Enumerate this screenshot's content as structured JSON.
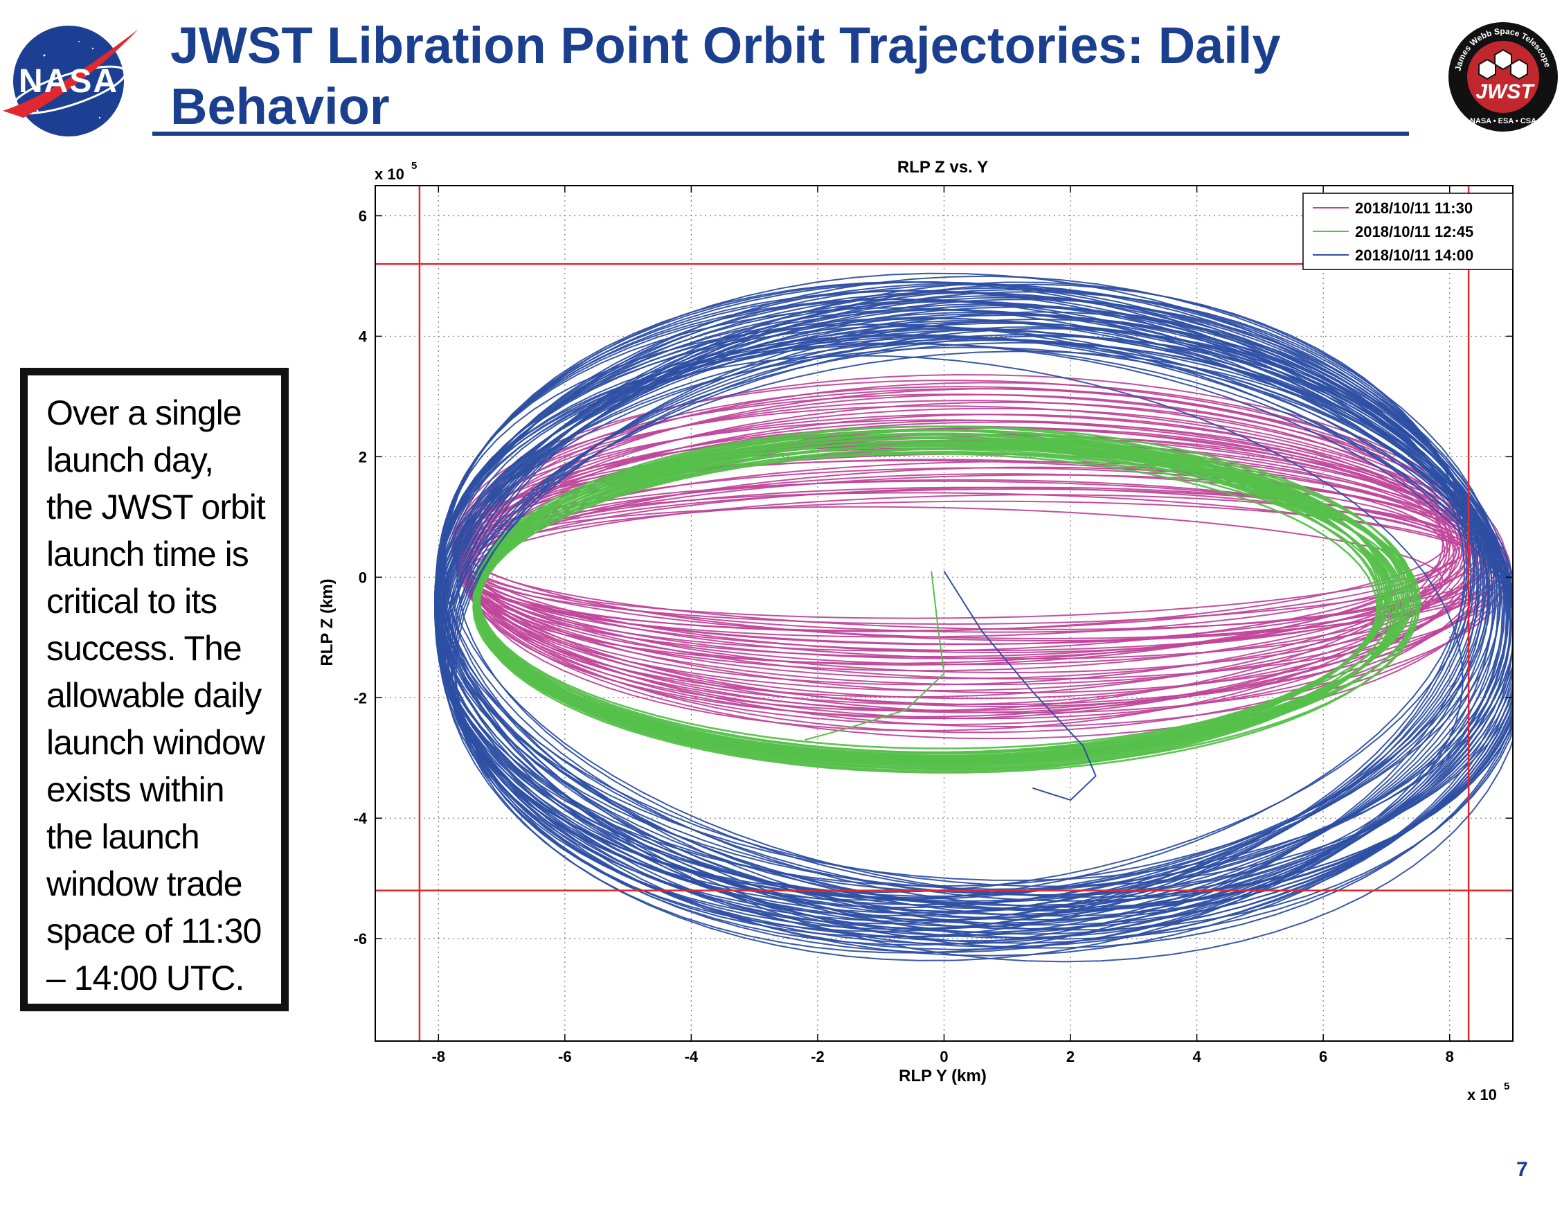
{
  "slide": {
    "title": "JWST Libration Point Orbit Trajectories: Daily Behavior",
    "callout": "Over a single launch day, the JWST orbit launch time is critical to its success. The allowable daily launch window exists within the launch window trade space of 11:30 – 14:00 UTC.",
    "page_number": "7",
    "nasa_logo": {
      "text": "NASA",
      "colors": {
        "globe": "#1c3f94",
        "chevron": "#e0282e"
      }
    },
    "jwst_logo": {
      "ring_text": "James Webb Space Telescope",
      "center_text": "JWST",
      "bottom_text": "NASA • ESA • CSA",
      "colors": {
        "ring": "#111111",
        "center": "#c1272d"
      }
    },
    "colors": {
      "title": "#1b3f8f",
      "rule": "#1b3f8f"
    }
  },
  "chart_data": {
    "type": "line",
    "title": "RLP Z vs. Y",
    "xlabel": "RLP Y (km)",
    "ylabel": "RLP Z (km)",
    "x_multiplier_label": "x 10",
    "x_multiplier_exp": "5",
    "y_multiplier_label": "x 10",
    "y_multiplier_exp": "5",
    "xlim": [
      -9.0,
      9.0
    ],
    "ylim": [
      -7.7,
      6.5
    ],
    "xticks": [
      -8,
      -6,
      -4,
      -2,
      0,
      2,
      4,
      6,
      8
    ],
    "yticks": [
      -6,
      -4,
      -2,
      0,
      2,
      4,
      6
    ],
    "grid": true,
    "legend_position": "top-right",
    "units_note": "axis values in units of 10^5 km",
    "series": [
      {
        "name": "2018/10/11 11:30",
        "color": "#c0449a",
        "center": [
          0.4,
          0.3
        ],
        "semi_axis_y": [
          7.7,
          8.4
        ],
        "semi_axis_z": [
          1.0,
          3.0
        ],
        "tilt_deg": [
          -3,
          4
        ],
        "loops": 45
      },
      {
        "name": "2018/10/11 12:45",
        "color": "#55c04a",
        "center": [
          -0.1,
          -0.35
        ],
        "semi_axis_y": [
          7.15,
          7.45
        ],
        "semi_axis_z": [
          2.55,
          2.8
        ],
        "tilt_deg": [
          0,
          0
        ],
        "loops": 30
      },
      {
        "name": "2018/10/11 14:00",
        "color": "#2d4fa3",
        "center": [
          0.45,
          -0.65
        ],
        "semi_axis_y": [
          8.2,
          8.8
        ],
        "semi_axis_z": [
          4.5,
          5.7
        ],
        "tilt_deg": [
          -14,
          14
        ],
        "loops": 60
      }
    ],
    "transfer_paths": [
      {
        "series": "2018/10/11 12:45",
        "color": "#55c04a",
        "points": [
          [
            -0.2,
            0.1
          ],
          [
            -0.1,
            -0.8
          ],
          [
            0.0,
            -1.6
          ],
          [
            -0.6,
            -2.2
          ],
          [
            -1.5,
            -2.5
          ],
          [
            -2.2,
            -2.7
          ]
        ]
      },
      {
        "series": "2018/10/11 14:00",
        "color": "#2d4fa3",
        "points": [
          [
            0.0,
            0.1
          ],
          [
            0.6,
            -0.9
          ],
          [
            1.4,
            -1.9
          ],
          [
            2.2,
            -2.8
          ],
          [
            2.4,
            -3.3
          ],
          [
            2.0,
            -3.7
          ],
          [
            1.4,
            -3.5
          ]
        ]
      }
    ],
    "reference_lines": {
      "color": "#e0282e",
      "vertical_x": [
        -8.3,
        8.3
      ],
      "horizontal_y": [
        5.2,
        -5.2
      ]
    }
  }
}
